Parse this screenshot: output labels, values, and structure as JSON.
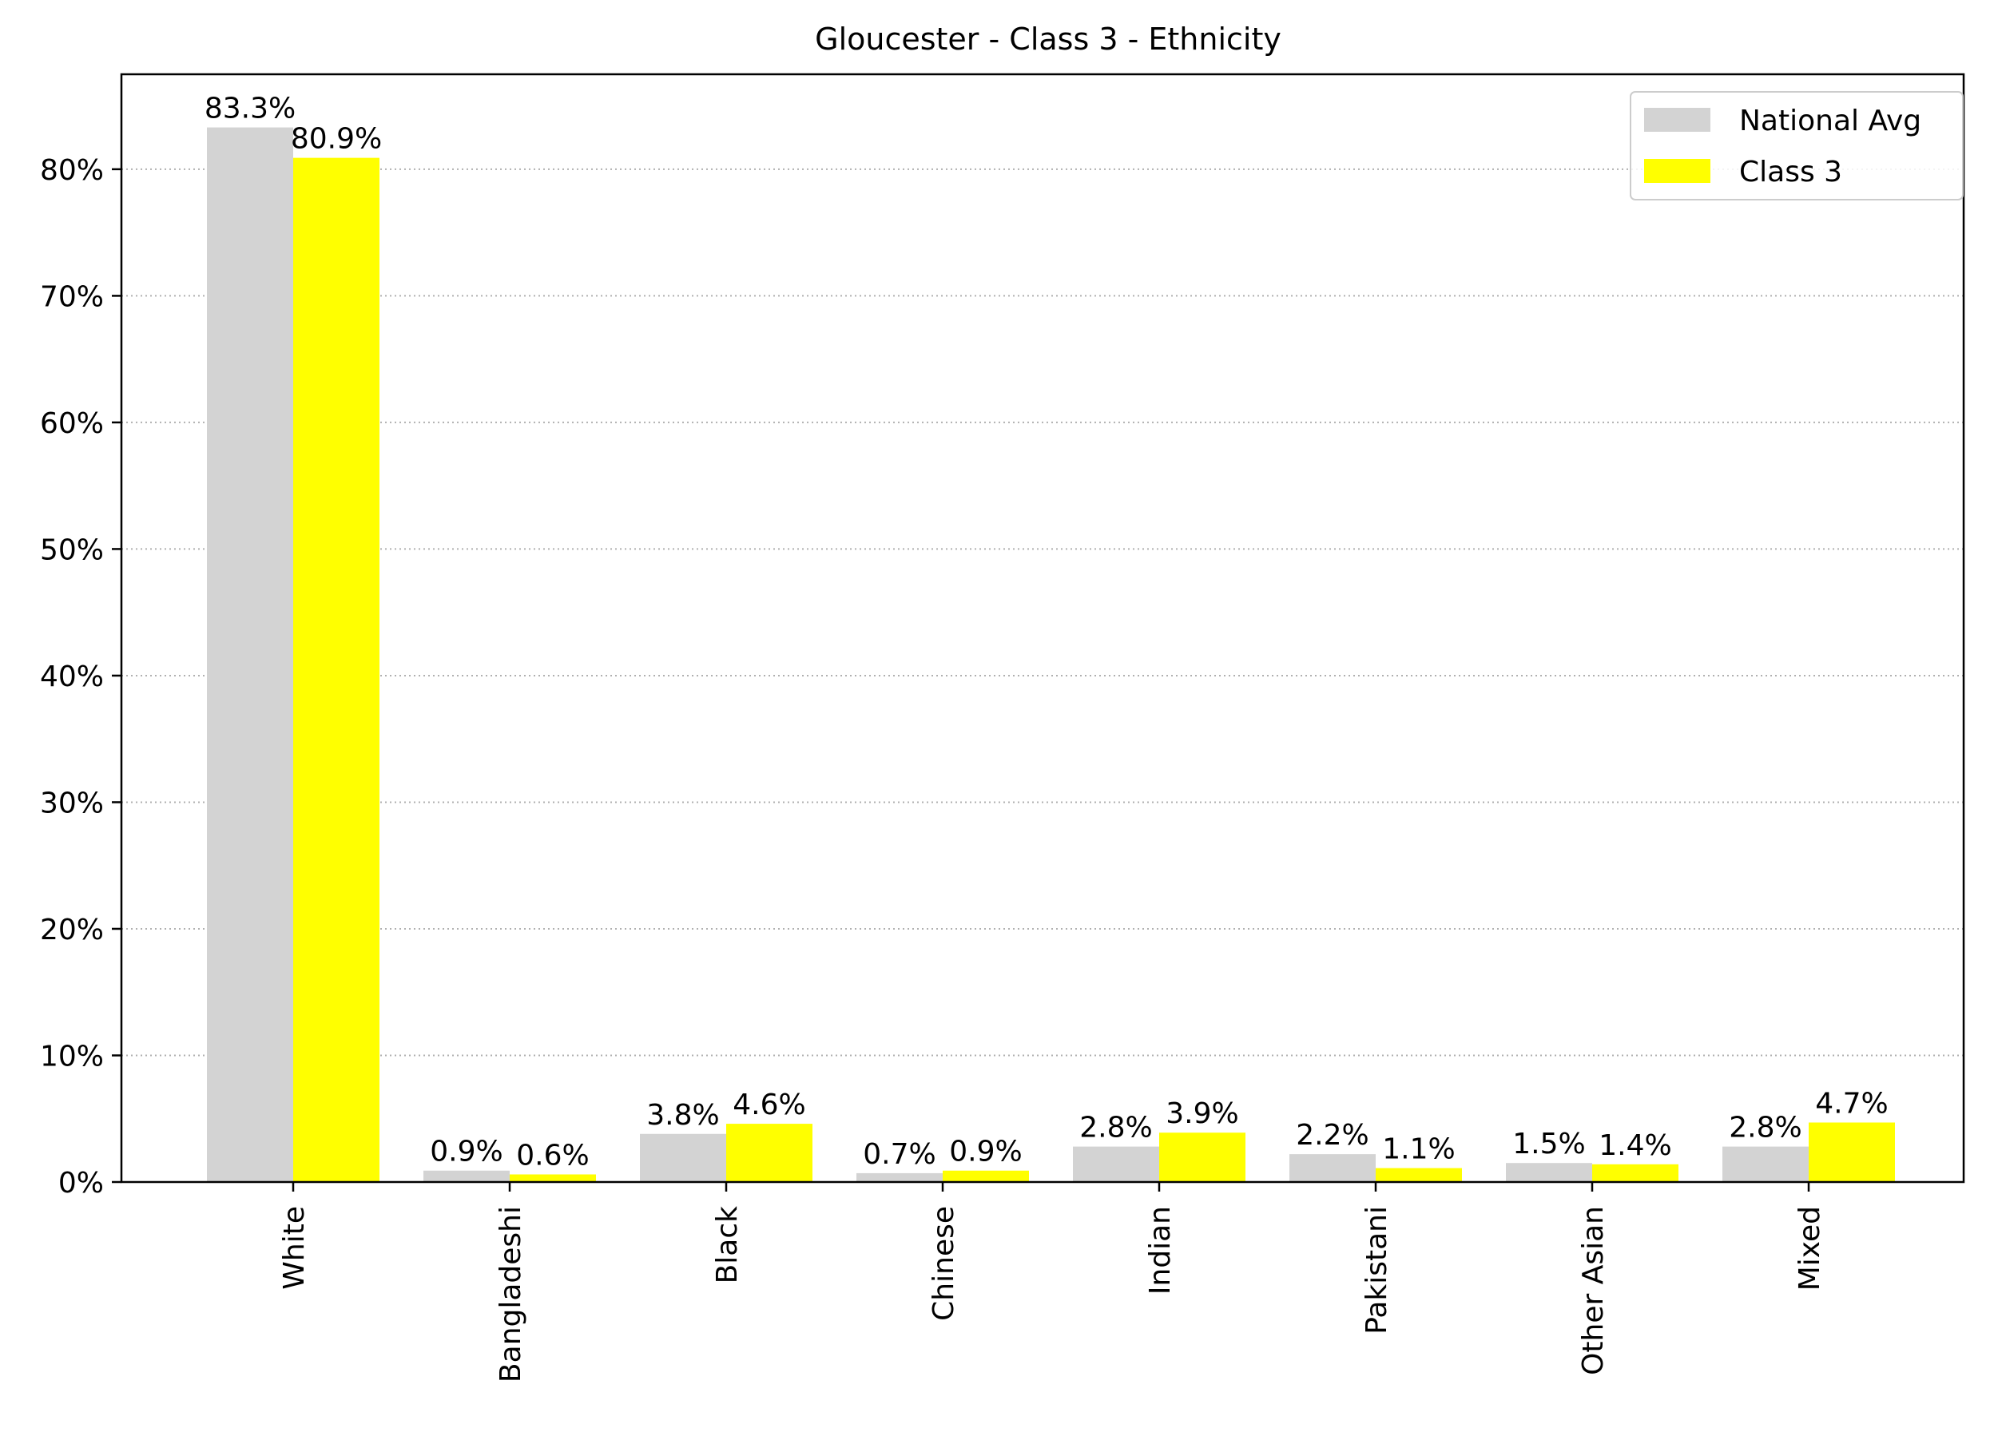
{
  "chart_data": {
    "type": "bar",
    "title": "Gloucester - Class 3 - Ethnicity",
    "xlabel": "",
    "ylabel": "",
    "categories": [
      "White",
      "Bangladeshi",
      "Black",
      "Chinese",
      "Indian",
      "Pakistani",
      "Other Asian",
      "Mixed"
    ],
    "series": [
      {
        "name": "National Avg",
        "color": "#d3d3d3",
        "values": [
          83.3,
          0.9,
          3.8,
          0.7,
          2.8,
          2.2,
          1.5,
          2.8
        ],
        "labels": [
          "83.3%",
          "0.9%",
          "3.8%",
          "0.7%",
          "2.8%",
          "2.2%",
          "1.5%",
          "2.8%"
        ]
      },
      {
        "name": "Class 3",
        "color": "#ffff00",
        "values": [
          80.9,
          0.6,
          4.6,
          0.9,
          3.9,
          1.1,
          1.4,
          4.7
        ],
        "labels": [
          "80.9%",
          "0.6%",
          "4.6%",
          "0.9%",
          "3.9%",
          "1.1%",
          "1.4%",
          "4.7%"
        ]
      }
    ],
    "y_ticks": [
      0,
      10,
      20,
      30,
      40,
      50,
      60,
      70,
      80
    ],
    "y_tick_labels": [
      "0%",
      "10%",
      "20%",
      "30%",
      "40%",
      "50%",
      "60%",
      "70%",
      "80%"
    ],
    "ylim": [
      0,
      87.5
    ],
    "grid": "horizontal dotted",
    "legend_position": "top-right"
  }
}
